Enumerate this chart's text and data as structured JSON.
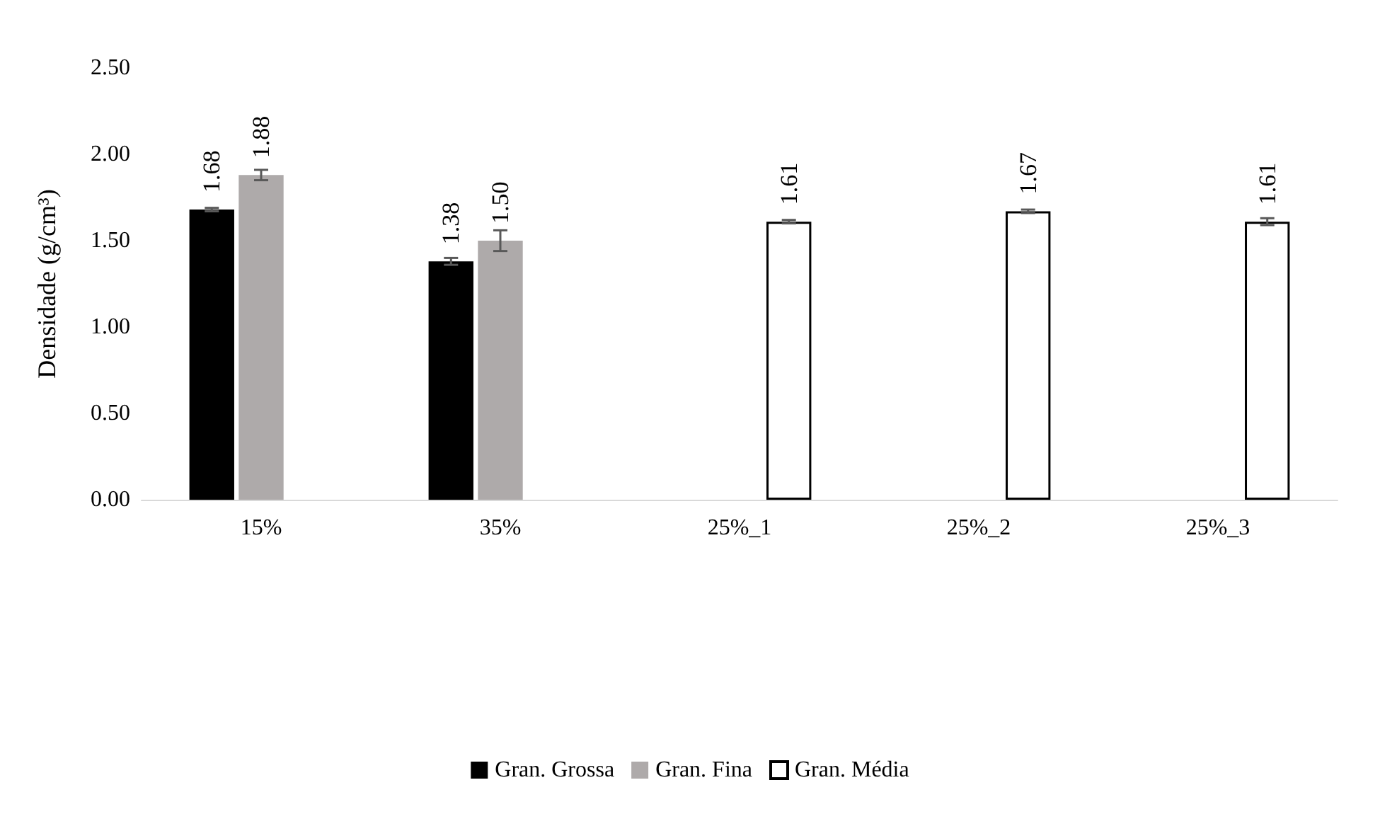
{
  "chart_data": {
    "type": "bar",
    "ylabel": "Densidade (g/cm³)",
    "categories": [
      "15%",
      "35%",
      "25%_1",
      "25%_2",
      "25%_3"
    ],
    "series": [
      {
        "name": "Gran. Grossa",
        "color": "#000000",
        "values": [
          1.68,
          1.38,
          null,
          null,
          null
        ],
        "errors": [
          0.01,
          0.02,
          null,
          null,
          null
        ],
        "value_labels": [
          "1.68",
          "1.38",
          null,
          null,
          null
        ]
      },
      {
        "name": "Gran. Fina",
        "color": "#aeaaaa",
        "values": [
          1.88,
          1.5,
          null,
          null,
          null
        ],
        "errors": [
          0.03,
          0.06,
          null,
          null,
          null
        ],
        "value_labels": [
          "1.88",
          "1.50",
          null,
          null,
          null
        ]
      },
      {
        "name": "Gran. Média",
        "color": "#ffffff",
        "values": [
          null,
          null,
          1.61,
          1.67,
          1.61
        ],
        "errors": [
          null,
          null,
          0.01,
          0.01,
          0.02
        ],
        "value_labels": [
          null,
          null,
          "1.61",
          "1.67",
          "1.61"
        ]
      }
    ],
    "ylim": [
      0,
      2.5
    ],
    "yticks": [
      {
        "value": 0,
        "label": "0.00"
      },
      {
        "value": 0.5,
        "label": "0.50"
      },
      {
        "value": 1,
        "label": "1.00"
      },
      {
        "value": 1.5,
        "label": "1.50"
      },
      {
        "value": 2,
        "label": "2.00"
      },
      {
        "value": 2.5,
        "label": "2.50"
      }
    ],
    "grid": false,
    "legend": "bottom"
  }
}
